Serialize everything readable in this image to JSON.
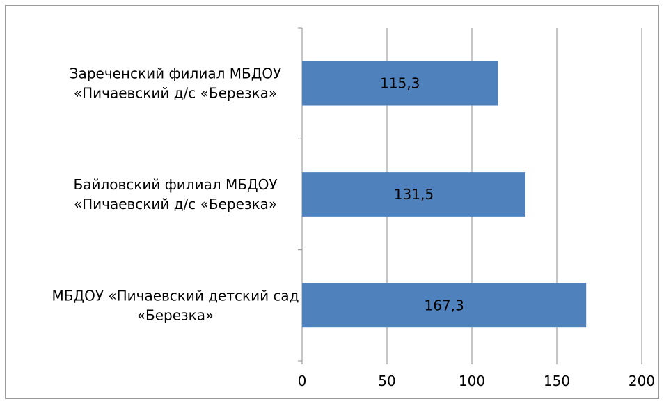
{
  "chart_data": {
    "type": "bar",
    "orientation": "horizontal",
    "categories": [
      [
        "Зареченский филиал МБДОУ",
        "«Пичаевский д/с «Березка»"
      ],
      [
        "Байловский филиал МБДОУ",
        "«Пичаевский д/с «Березка»"
      ],
      [
        "МБДОУ «Пичаевский детский сад",
        "«Березка»"
      ]
    ],
    "values": [
      115.3,
      131.5,
      167.3
    ],
    "data_labels": [
      "115,3",
      "131,5",
      "167,3"
    ],
    "xlim": [
      0,
      200
    ],
    "x_ticks": [
      0,
      50,
      100,
      150,
      200
    ],
    "x_tick_labels": [
      "0",
      "50",
      "100",
      "150",
      "200"
    ],
    "grid": "vertical",
    "legend": "none",
    "title": "",
    "xlabel": "",
    "ylabel": "",
    "bar_color": "#4f81bd",
    "gridline_color": "#8c8c8c"
  }
}
